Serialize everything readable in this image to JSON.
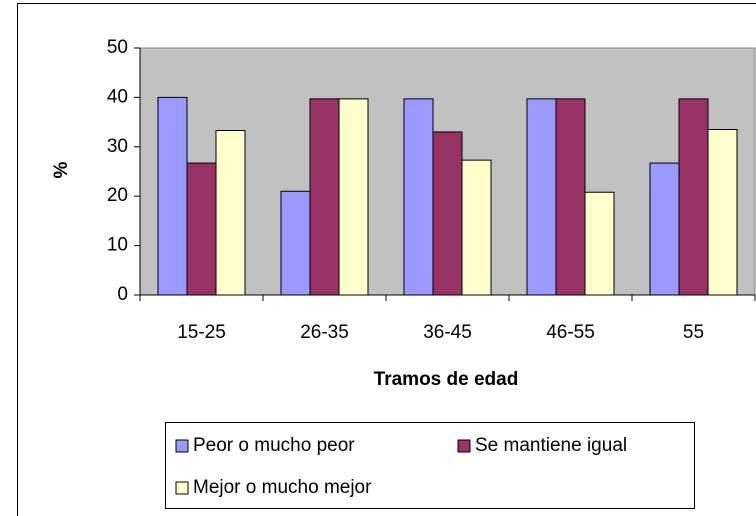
{
  "chart_data": {
    "type": "bar",
    "x_label": "Tramos de edad",
    "y_label": "%",
    "categories": [
      "15-25",
      "26-35",
      "36-45",
      "46-55",
      "55"
    ],
    "series": [
      {
        "name": "Peor o mucho peor",
        "color": "#9999ff",
        "values": [
          40,
          21,
          39.7,
          39.7,
          26.7
        ]
      },
      {
        "name": "Se mantiene igual",
        "color": "#993366",
        "values": [
          26.7,
          39.7,
          33,
          39.7,
          39.7
        ]
      },
      {
        "name": "Mejor o mucho mejor",
        "color": "#ffffcc",
        "values": [
          33.3,
          39.7,
          27.3,
          20.8,
          33.5
        ]
      }
    ],
    "ylim": [
      0,
      50
    ],
    "yticks": [
      0,
      10,
      20,
      30,
      40,
      50
    ],
    "grid": false,
    "legend": "bottom"
  }
}
